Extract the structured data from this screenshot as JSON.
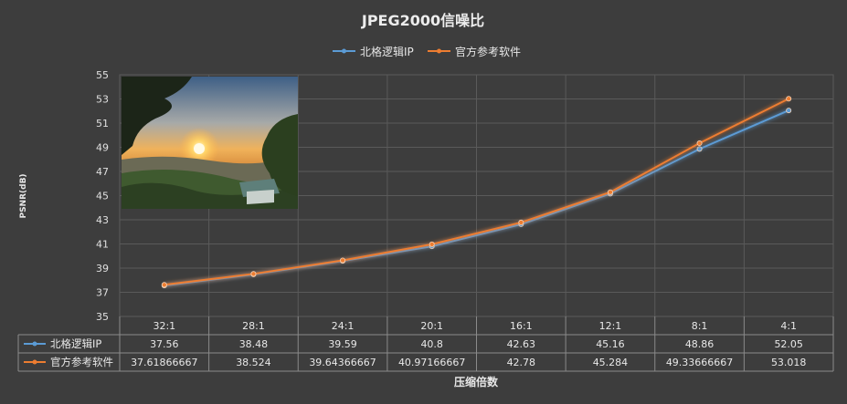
{
  "chart_data": {
    "type": "line",
    "title": "JPEG2000信噪比",
    "xlabel": "压缩倍数",
    "ylabel": "PSNR(dB)",
    "categories": [
      "32:1",
      "28:1",
      "24:1",
      "20:1",
      "16:1",
      "12:1",
      "8:1",
      "4:1"
    ],
    "ylim": [
      35,
      55
    ],
    "yticks": [
      35,
      37,
      39,
      41,
      43,
      45,
      47,
      49,
      51,
      53,
      55
    ],
    "grid": true,
    "legend": "top",
    "has_data_table": true,
    "series": [
      {
        "name": "北格逻辑IP",
        "color": "#5b9bd5",
        "values": [
          37.56,
          38.48,
          39.59,
          40.8,
          42.63,
          45.16,
          48.86,
          52.05
        ],
        "labels": [
          "37.56",
          "38.48",
          "39.59",
          "40.8",
          "42.63",
          "45.16",
          "48.86",
          "52.05"
        ]
      },
      {
        "name": "官方参考软件",
        "color": "#ed7d31",
        "values": [
          37.61866667,
          38.524,
          39.64366667,
          40.97166667,
          42.78,
          45.284,
          49.33666667,
          53.018
        ],
        "labels": [
          "37.61866667",
          "38.524",
          "39.64366667",
          "40.97166667",
          "42.78",
          "45.284",
          "49.33666667",
          "53.018"
        ]
      }
    ]
  }
}
